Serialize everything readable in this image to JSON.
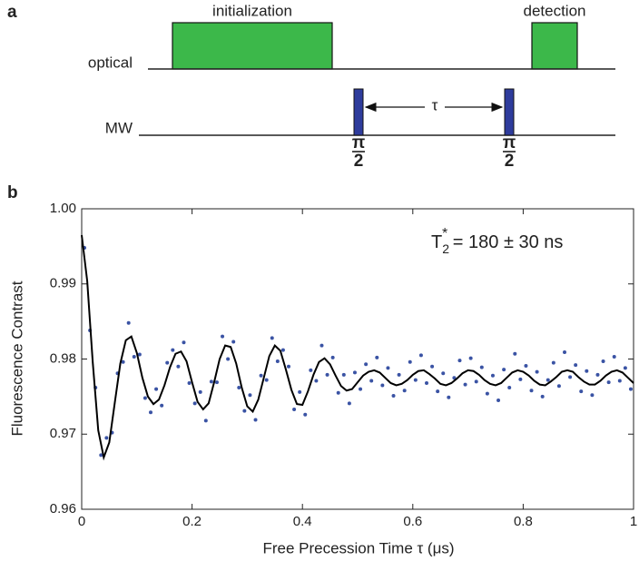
{
  "diagram": {
    "panel_label": "a",
    "optical_label": "optical",
    "mw_label": "MW",
    "pulses": [
      "initialization",
      "detection"
    ],
    "tau": "τ",
    "pi_half": {
      "num": "π",
      "den": "2"
    }
  },
  "chart_data": {
    "type": "scatter",
    "panel_label": "b",
    "annotation": {
      "base": "T",
      "sub": "2",
      "sup": "*",
      "rest": " = 180 ± 30 ns"
    },
    "x_label": "Free Precession Time τ (μs)",
    "y_label": "Fluorescence Contrast",
    "xlim": [
      0,
      1
    ],
    "ylim": [
      0.96,
      1.0
    ],
    "xticks": [
      0,
      0.2,
      0.4,
      0.6,
      0.8,
      1
    ],
    "yticks": [
      0.96,
      0.97,
      0.98,
      0.99,
      {
        "value": 1,
        "label": "1.00"
      }
    ],
    "series": [
      {
        "type": "scatter",
        "color": "#3a53a4",
        "x": [
          0.005,
          0.015,
          0.025,
          0.035,
          0.045,
          0.055,
          0.065,
          0.075,
          0.085,
          0.095,
          0.105,
          0.115,
          0.125,
          0.135,
          0.145,
          0.155,
          0.165,
          0.175,
          0.185,
          0.195,
          0.205,
          0.215,
          0.225,
          0.235,
          0.245,
          0.255,
          0.265,
          0.275,
          0.285,
          0.295,
          0.305,
          0.315,
          0.325,
          0.335,
          0.345,
          0.355,
          0.365,
          0.375,
          0.385,
          0.395,
          0.405,
          0.415,
          0.425,
          0.435,
          0.445,
          0.455,
          0.465,
          0.475,
          0.485,
          0.495,
          0.505,
          0.515,
          0.525,
          0.535,
          0.545,
          0.555,
          0.565,
          0.575,
          0.585,
          0.595,
          0.605,
          0.615,
          0.625,
          0.635,
          0.645,
          0.655,
          0.665,
          0.675,
          0.685,
          0.695,
          0.705,
          0.715,
          0.725,
          0.735,
          0.745,
          0.755,
          0.765,
          0.775,
          0.785,
          0.795,
          0.805,
          0.815,
          0.825,
          0.835,
          0.845,
          0.855,
          0.865,
          0.875,
          0.885,
          0.895,
          0.905,
          0.915,
          0.925,
          0.935,
          0.945,
          0.955,
          0.965,
          0.975,
          0.985,
          0.995
        ],
        "values": [
          0.9948,
          0.9838,
          0.9762,
          0.9672,
          0.9695,
          0.9702,
          0.9781,
          0.9796,
          0.9848,
          0.9803,
          0.9806,
          0.9748,
          0.9729,
          0.976,
          0.9738,
          0.9795,
          0.9812,
          0.979,
          0.9822,
          0.9768,
          0.9741,
          0.9756,
          0.9718,
          0.977,
          0.9769,
          0.983,
          0.98,
          0.9823,
          0.9762,
          0.9731,
          0.9752,
          0.9719,
          0.9778,
          0.9772,
          0.9828,
          0.9797,
          0.9812,
          0.979,
          0.9733,
          0.9756,
          0.9726,
          0.9785,
          0.9771,
          0.9818,
          0.9779,
          0.9802,
          0.9755,
          0.9779,
          0.9741,
          0.9782,
          0.976,
          0.9793,
          0.9771,
          0.9802,
          0.9765,
          0.9788,
          0.9751,
          0.9779,
          0.9758,
          0.9796,
          0.9772,
          0.9805,
          0.9768,
          0.979,
          0.9757,
          0.9781,
          0.9749,
          0.9775,
          0.9798,
          0.9766,
          0.9801,
          0.977,
          0.9789,
          0.9754,
          0.9778,
          0.9745,
          0.9786,
          0.9762,
          0.9807,
          0.9773,
          0.9791,
          0.9758,
          0.9783,
          0.975,
          0.9772,
          0.9795,
          0.9764,
          0.9809,
          0.9776,
          0.9792,
          0.9757,
          0.9784,
          0.9752,
          0.9779,
          0.9797,
          0.9769,
          0.9803,
          0.9771,
          0.9788,
          0.976
        ]
      },
      {
        "type": "line",
        "color": "#000000",
        "x": [
          0,
          0.01,
          0.02,
          0.03,
          0.04,
          0.05,
          0.06,
          0.07,
          0.08,
          0.09,
          0.1,
          0.11,
          0.12,
          0.13,
          0.14,
          0.15,
          0.16,
          0.17,
          0.18,
          0.19,
          0.2,
          0.21,
          0.22,
          0.23,
          0.24,
          0.25,
          0.26,
          0.27,
          0.28,
          0.29,
          0.3,
          0.31,
          0.32,
          0.33,
          0.34,
          0.35,
          0.36,
          0.37,
          0.38,
          0.39,
          0.4,
          0.41,
          0.42,
          0.43,
          0.44,
          0.45,
          0.46,
          0.47,
          0.48,
          0.49,
          0.5,
          0.51,
          0.52,
          0.53,
          0.54,
          0.55,
          0.56,
          0.57,
          0.58,
          0.59,
          0.6,
          0.61,
          0.62,
          0.63,
          0.64,
          0.65,
          0.66,
          0.67,
          0.68,
          0.69,
          0.7,
          0.71,
          0.72,
          0.73,
          0.74,
          0.75,
          0.76,
          0.77,
          0.78,
          0.79,
          0.8,
          0.81,
          0.82,
          0.83,
          0.84,
          0.85,
          0.86,
          0.87,
          0.88,
          0.89,
          0.9,
          0.91,
          0.92,
          0.93,
          0.94,
          0.95,
          0.96,
          0.97,
          0.98,
          0.99,
          1
        ],
        "values": [
          0.9965,
          0.9904,
          0.9796,
          0.9705,
          0.9669,
          0.9689,
          0.9742,
          0.9794,
          0.9825,
          0.983,
          0.9808,
          0.9775,
          0.975,
          0.974,
          0.9746,
          0.9765,
          0.9789,
          0.9807,
          0.981,
          0.9797,
          0.9769,
          0.9743,
          0.9733,
          0.9741,
          0.9769,
          0.98,
          0.9818,
          0.9816,
          0.9794,
          0.9762,
          0.9737,
          0.973,
          0.9746,
          0.9775,
          0.9804,
          0.9818,
          0.9811,
          0.9786,
          0.9759,
          0.974,
          0.9739,
          0.9757,
          0.9779,
          0.9796,
          0.9801,
          0.9793,
          0.9778,
          0.9764,
          0.9758,
          0.976,
          0.9769,
          0.9778,
          0.9783,
          0.9785,
          0.9782,
          0.9775,
          0.9768,
          0.9765,
          0.9767,
          0.9772,
          0.9779,
          0.9784,
          0.9785,
          0.978,
          0.9774,
          0.9767,
          0.9765,
          0.9768,
          0.9774,
          0.9781,
          0.9785,
          0.9784,
          0.9779,
          0.9772,
          0.9767,
          0.9765,
          0.9768,
          0.9775,
          0.9782,
          0.9785,
          0.9783,
          0.9778,
          0.9771,
          0.9766,
          0.9765,
          0.977,
          0.9776,
          0.9783,
          0.9785,
          0.9783,
          0.9776,
          0.977,
          0.9766,
          0.9766,
          0.9771,
          0.9778,
          0.9783,
          0.9785,
          0.9782,
          0.9775,
          0.9768
        ]
      }
    ]
  }
}
